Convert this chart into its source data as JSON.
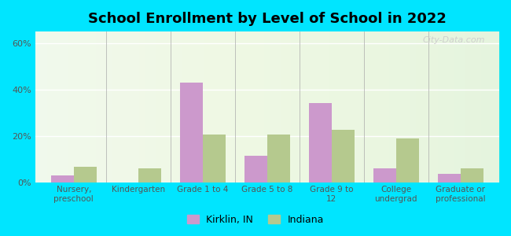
{
  "title": "School Enrollment by Level of School in 2022",
  "categories": [
    "Nursery,\npreschool",
    "Kindergarten",
    "Grade 1 to 4",
    "Grade 5 to 8",
    "Grade 9 to\n12",
    "College\nundergrad",
    "Graduate or\nprofessional"
  ],
  "kirklin_values": [
    3.0,
    0.0,
    43.0,
    11.5,
    34.0,
    6.0,
    3.5
  ],
  "indiana_values": [
    6.5,
    6.0,
    20.5,
    20.5,
    22.5,
    19.0,
    6.0
  ],
  "kirklin_color": "#cc99cc",
  "indiana_color": "#b5c98e",
  "background_outer": "#00e5ff",
  "ylim": [
    0,
    65
  ],
  "yticks": [
    0,
    20,
    40,
    60
  ],
  "ytick_labels": [
    "0%",
    "20%",
    "40%",
    "60%"
  ],
  "legend_kirklin": "Kirklin, IN",
  "legend_indiana": "Indiana",
  "watermark": "City-Data.com",
  "bar_width": 0.35
}
